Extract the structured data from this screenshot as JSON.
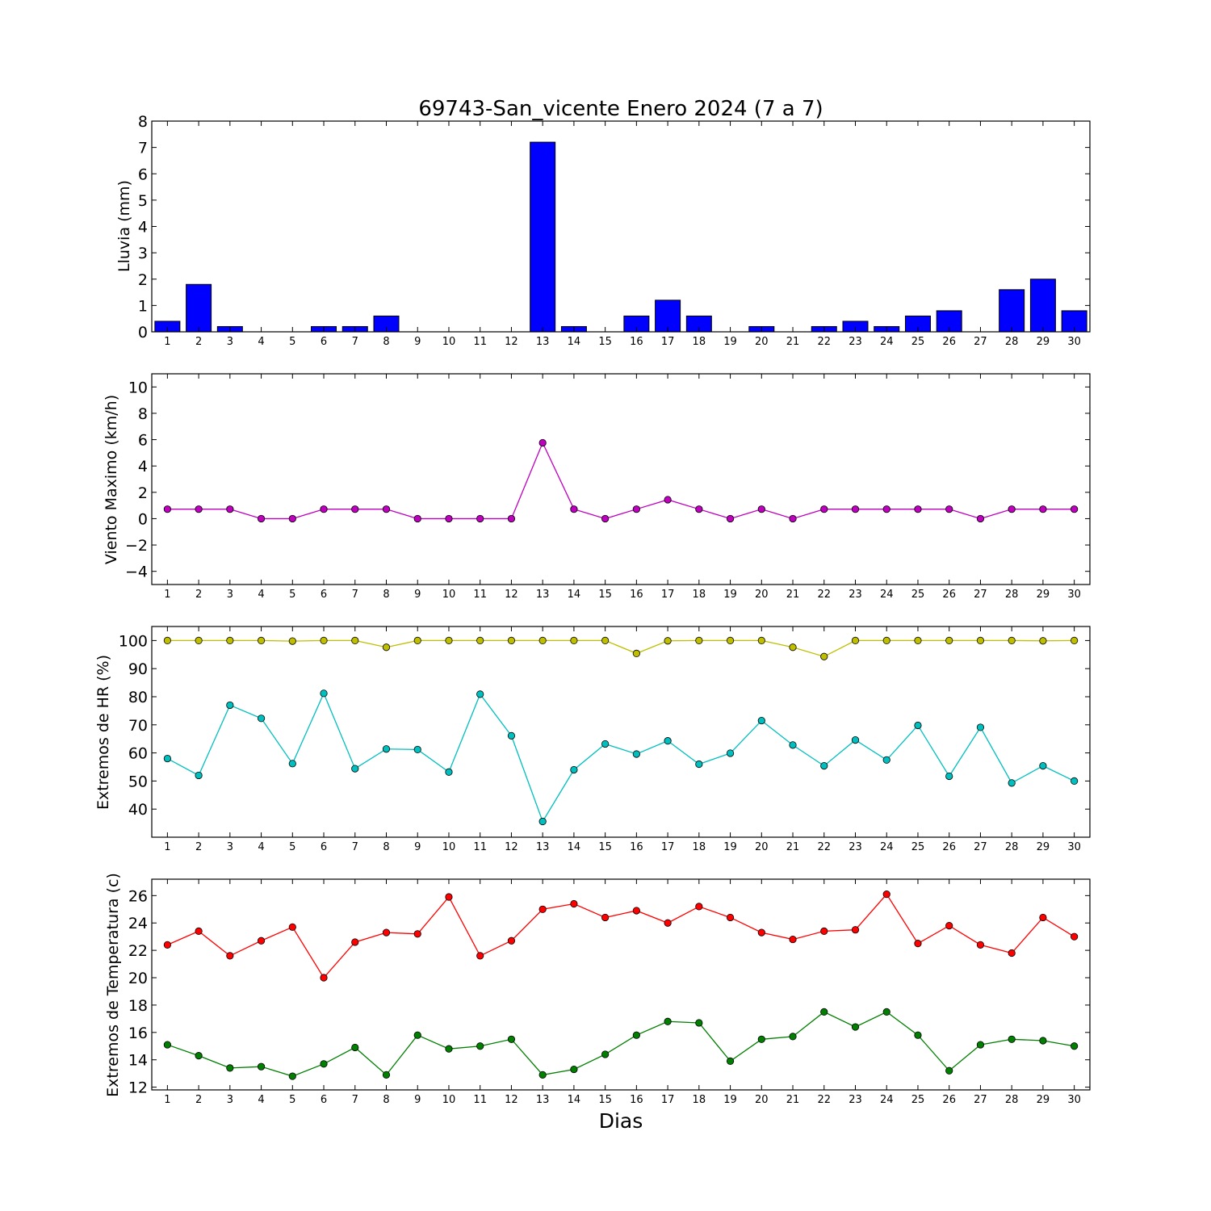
{
  "chart_data": [
    {
      "type": "bar",
      "title": "69743-San_vicente Enero 2024  (7 a 7)",
      "ylabel": "Lluvia (mm)",
      "xlabel": "",
      "ylim": [
        0,
        8
      ],
      "yticks": [
        0,
        1,
        2,
        3,
        4,
        5,
        6,
        7,
        8
      ],
      "categories": [
        1,
        2,
        3,
        4,
        5,
        6,
        7,
        8,
        9,
        10,
        11,
        12,
        13,
        14,
        15,
        16,
        17,
        18,
        19,
        20,
        21,
        22,
        23,
        24,
        25,
        26,
        27,
        28,
        29,
        30
      ],
      "series": [
        {
          "values": [
            0.4,
            1.8,
            0.2,
            0,
            0,
            0.2,
            0.2,
            0.6,
            0,
            0,
            0,
            0,
            7.2,
            0.2,
            0,
            0.6,
            1.2,
            0.6,
            0,
            0.2,
            0,
            0.2,
            0.4,
            0.2,
            0.6,
            0.8,
            0,
            1.6,
            2.0,
            0.8
          ],
          "color": "#0000ff"
        }
      ]
    },
    {
      "type": "line",
      "title": "",
      "ylabel": "Viento Maximo (km/h)",
      "xlabel": "",
      "ylim": [
        -5,
        11
      ],
      "yticks": [
        -4,
        -2,
        0,
        2,
        4,
        6,
        8,
        10
      ],
      "ytick_labels": [
        "−4",
        "−2",
        "0",
        "2",
        "4",
        "6",
        "8",
        "10"
      ],
      "categories": [
        1,
        2,
        3,
        4,
        5,
        6,
        7,
        8,
        9,
        10,
        11,
        12,
        13,
        14,
        15,
        16,
        17,
        18,
        19,
        20,
        21,
        22,
        23,
        24,
        25,
        26,
        27,
        28,
        29,
        30
      ],
      "series": [
        {
          "values": [
            0.72,
            0.72,
            0.72,
            0,
            0,
            0.72,
            0.72,
            0.72,
            0,
            0,
            0,
            0,
            5.76,
            0.72,
            0,
            0.72,
            1.44,
            0.72,
            0,
            0.72,
            0,
            0.72,
            0.72,
            0.72,
            0.72,
            0.72,
            0,
            0.72,
            0.72,
            0.72
          ],
          "color": "#bf00bf"
        }
      ]
    },
    {
      "type": "line",
      "title": "",
      "ylabel": "Extremos de HR (%)",
      "xlabel": "",
      "ylim": [
        30,
        105
      ],
      "yticks": [
        40,
        50,
        60,
        70,
        80,
        90,
        100
      ],
      "categories": [
        1,
        2,
        3,
        4,
        5,
        6,
        7,
        8,
        9,
        10,
        11,
        12,
        13,
        14,
        15,
        16,
        17,
        18,
        19,
        20,
        21,
        22,
        23,
        24,
        25,
        26,
        27,
        28,
        29,
        30
      ],
      "series": [
        {
          "values": [
            100,
            100,
            100,
            100,
            99.8,
            100,
            100,
            97.6,
            100,
            100,
            100,
            100,
            100,
            100,
            100,
            95.4,
            99.9,
            100,
            100,
            100,
            97.6,
            94.3,
            100,
            100,
            100,
            100,
            100,
            100,
            99.9,
            100
          ],
          "color": "#bfbf00"
        },
        {
          "values": [
            58,
            52,
            77,
            72.3,
            56.2,
            81.2,
            54.4,
            61.4,
            61.2,
            53.2,
            80.9,
            66.1,
            35.6,
            54,
            63.2,
            59.6,
            64.3,
            56,
            59.9,
            71.5,
            62.8,
            55.4,
            64.6,
            57.5,
            69.8,
            51.7,
            69.1,
            49.3,
            55.4,
            50
          ],
          "color": "#00bfbf"
        }
      ]
    },
    {
      "type": "line",
      "title": "",
      "ylabel": "Extremos de Temperatura (c)",
      "xlabel": "Dias",
      "ylim": [
        11.8,
        27.2
      ],
      "yticks": [
        12,
        14,
        16,
        18,
        20,
        22,
        24,
        26
      ],
      "categories": [
        1,
        2,
        3,
        4,
        5,
        6,
        7,
        8,
        9,
        10,
        11,
        12,
        13,
        14,
        15,
        16,
        17,
        18,
        19,
        20,
        21,
        22,
        23,
        24,
        25,
        26,
        27,
        28,
        29,
        30
      ],
      "series": [
        {
          "values": [
            22.4,
            23.4,
            21.6,
            22.7,
            23.7,
            20,
            22.6,
            23.3,
            23.2,
            25.9,
            21.6,
            22.7,
            25,
            25.4,
            24.4,
            24.9,
            24,
            25.2,
            24.4,
            23.3,
            22.8,
            23.4,
            23.5,
            26.1,
            22.5,
            23.8,
            22.4,
            21.8,
            24.4,
            23
          ],
          "color": "#ff0000"
        },
        {
          "values": [
            15.1,
            14.3,
            13.4,
            13.5,
            12.8,
            13.7,
            14.9,
            12.9,
            15.8,
            14.8,
            15,
            15.5,
            12.9,
            13.3,
            14.4,
            15.8,
            16.8,
            16.7,
            13.9,
            15.5,
            15.7,
            17.5,
            16.4,
            17.5,
            15.8,
            13.2,
            15.1,
            15.5,
            15.4,
            15
          ],
          "color": "#007f00"
        }
      ]
    }
  ]
}
